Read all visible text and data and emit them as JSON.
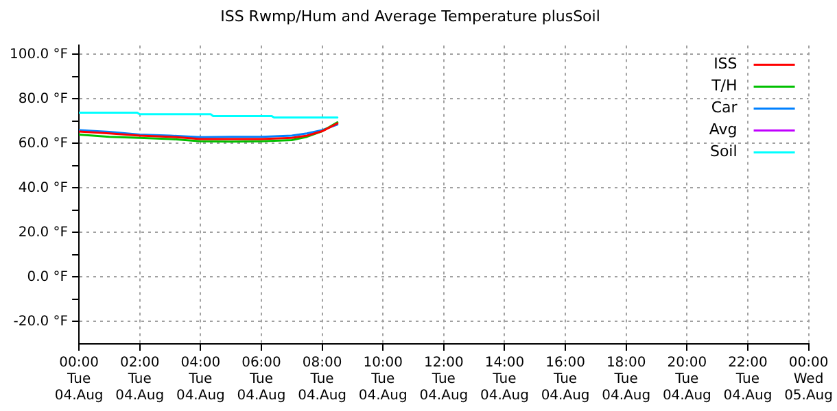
{
  "chart_data": {
    "type": "line",
    "title": "ISS Rwmp/Hum and Average Temperature plusSoil",
    "xlim": [
      "--08-04T00:00",
      "--08-05T00:00"
    ],
    "xticks": [
      {
        "value": "--08-04T00:00",
        "label": "00:00\nTue\n04.Aug"
      },
      {
        "value": "--08-04T02:00",
        "label": "02:00\nTue\n04.Aug"
      },
      {
        "value": "--08-04T04:00",
        "label": "04:00\nTue\n04.Aug"
      },
      {
        "value": "--08-04T06:00",
        "label": "06:00\nTue\n04.Aug"
      },
      {
        "value": "--08-04T08:00",
        "label": "08:00\nTue\n04.Aug"
      },
      {
        "value": "--08-04T10:00",
        "label": "10:00\nTue\n04.Aug"
      },
      {
        "value": "--08-04T12:00",
        "label": "12:00\nTue\n04.Aug"
      },
      {
        "value": "--08-04T14:00",
        "label": "14:00\nTue\n04.Aug"
      },
      {
        "value": "--08-04T16:00",
        "label": "16:00\nTue\n04.Aug"
      },
      {
        "value": "--08-04T18:00",
        "label": "18:00\nTue\n04.Aug"
      },
      {
        "value": "--08-04T20:00",
        "label": "20:00\nTue\n04.Aug"
      },
      {
        "value": "--08-04T22:00",
        "label": "22:00\nTue\n04.Aug"
      },
      {
        "value": "--08-05T00:00",
        "label": "00:00\nWed\n05.Aug"
      }
    ],
    "ylim": [
      -30,
      104
    ],
    "yticks": [
      {
        "value": -20,
        "label": "-20.0 °F"
      },
      {
        "value": -10,
        "label": null
      },
      {
        "value": 0,
        "label": "0.0 °F"
      },
      {
        "value": 10,
        "label": null
      },
      {
        "value": 20,
        "label": "20.0 °F"
      },
      {
        "value": 30,
        "label": null
      },
      {
        "value": 40,
        "label": "40.0 °F"
      },
      {
        "value": 50,
        "label": null
      },
      {
        "value": 60,
        "label": "60.0 °F"
      },
      {
        "value": 70,
        "label": null
      },
      {
        "value": 80,
        "label": "80.0 °F"
      },
      {
        "value": 90,
        "label": null
      },
      {
        "value": 100,
        "label": "100.0 °F"
      }
    ],
    "grid": true,
    "legend": "top right",
    "line_style": "solid",
    "marker": "none",
    "series": [
      {
        "name": "ISS",
        "color": "#ff0000",
        "x": [
          "--08-04T00:00",
          "--08-04T01:00",
          "--08-04T02:00",
          "--08-04T03:00",
          "--08-04T04:00",
          "--08-04T05:00",
          "--08-04T06:00",
          "--08-04T07:00",
          "--08-04T07:30",
          "--08-04T08:00",
          "--08-04T08:30"
        ],
        "values": [
          65.4,
          64.5,
          63.5,
          63,
          62,
          62,
          62,
          62.5,
          63.5,
          65.5,
          69
        ]
      },
      {
        "name": "T/H",
        "color": "#00c000",
        "x": [
          "--08-04T00:00",
          "--08-04T01:00",
          "--08-04T02:00",
          "--08-04T03:00",
          "--08-04T04:00",
          "--08-04T05:00",
          "--08-04T06:00",
          "--08-04T07:00",
          "--08-04T07:30",
          "--08-04T08:00",
          "--08-04T08:30"
        ],
        "values": [
          64,
          63,
          62.5,
          62,
          61,
          60.8,
          61,
          61.5,
          63,
          65.5,
          69.5
        ]
      },
      {
        "name": "Car",
        "color": "#0080ff",
        "x": [
          "--08-04T00:00",
          "--08-04T01:00",
          "--08-04T02:00",
          "--08-04T03:00",
          "--08-04T04:00",
          "--08-04T05:00",
          "--08-04T06:00",
          "--08-04T07:00",
          "--08-04T07:30",
          "--08-04T08:00",
          "--08-04T08:30"
        ],
        "values": [
          66,
          65.2,
          64,
          63.5,
          62.8,
          63,
          63,
          63.5,
          64.5,
          66,
          68.5
        ]
      },
      {
        "name": "Avg",
        "color": "#c000ff"
      },
      {
        "name": "Soil",
        "color": "#00ffff",
        "x": [
          "--08-04T00:00",
          "--08-04T01:55",
          "--08-04T02:00",
          "--08-04T04:20",
          "--08-04T04:25",
          "--08-04T06:20",
          "--08-04T06:25",
          "--08-04T08:30"
        ],
        "values": [
          73.8,
          73.8,
          73.1,
          73.1,
          72.3,
          72.3,
          71.7,
          71.7
        ]
      }
    ]
  }
}
